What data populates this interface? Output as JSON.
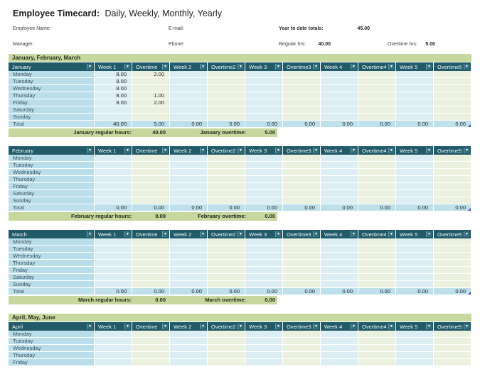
{
  "title": {
    "main": "Employee Timecard:",
    "subtitle": "Daily, Weekly, Monthly, Yearly"
  },
  "fields": {
    "employee_name_label": "Employee Name:",
    "email_label": "E-mail:",
    "ytd_label": "Year to date totals:",
    "ytd_value": "45.00",
    "manager_label": "Manager:",
    "phone_label": "Phone:",
    "regular_label": "Regular hrs:",
    "regular_value": "40.00",
    "overtime_label": "Overtime hrs:",
    "overtime_value": "5.00"
  },
  "columns": [
    "Week 1",
    "Overtime",
    "Week 2",
    "Overtime2",
    "Week 3",
    "Overtime3",
    "Week 4",
    "Overtime4",
    "Week 5",
    "Overtime5"
  ],
  "dropdown_icon": "▼",
  "months": [
    {
      "band": "January, February, March",
      "name": "January",
      "rows": [
        {
          "label": "Monday",
          "values": [
            "8.00",
            "2.00",
            "",
            "",
            "",
            "",
            "",
            "",
            "",
            ""
          ]
        },
        {
          "label": "Tuesday",
          "values": [
            "8.00",
            "",
            "",
            "",
            "",
            "",
            "",
            "",
            "",
            ""
          ]
        },
        {
          "label": "Wednesday",
          "values": [
            "8.00",
            "",
            "",
            "",
            "",
            "",
            "",
            "",
            "",
            ""
          ]
        },
        {
          "label": "Thursday",
          "values": [
            "8.00",
            "1.00",
            "",
            "",
            "",
            "",
            "",
            "",
            "",
            ""
          ]
        },
        {
          "label": "Friday",
          "values": [
            "8.00",
            "2.00",
            "",
            "",
            "",
            "",
            "",
            "",
            "",
            ""
          ]
        },
        {
          "label": "Saturday",
          "values": [
            "",
            "",
            "",
            "",
            "",
            "",
            "",
            "",
            "",
            ""
          ]
        },
        {
          "label": "Sunday",
          "values": [
            "",
            "",
            "",
            "",
            "",
            "",
            "",
            "",
            "",
            ""
          ]
        }
      ],
      "total": {
        "label": "Total",
        "values": [
          "40.00",
          "5.00",
          "0.00",
          "0.00",
          "0.00",
          "0.00",
          "0.00",
          "0.00",
          "0.00",
          "0.00"
        ]
      },
      "footer": {
        "regular_label": "January regular hours:",
        "regular_value": "40.00",
        "overtime_label": "January overtime:",
        "overtime_value": "5.00"
      }
    },
    {
      "name": "February",
      "rows": [
        {
          "label": "Monday",
          "values": [
            "",
            "",
            "",
            "",
            "",
            "",
            "",
            "",
            "",
            ""
          ]
        },
        {
          "label": "Tuesday",
          "values": [
            "",
            "",
            "",
            "",
            "",
            "",
            "",
            "",
            "",
            ""
          ]
        },
        {
          "label": "Wednesday",
          "values": [
            "",
            "",
            "",
            "",
            "",
            "",
            "",
            "",
            "",
            ""
          ]
        },
        {
          "label": "Thursday",
          "values": [
            "",
            "",
            "",
            "",
            "",
            "",
            "",
            "",
            "",
            ""
          ]
        },
        {
          "label": "Friday",
          "values": [
            "",
            "",
            "",
            "",
            "",
            "",
            "",
            "",
            "",
            ""
          ]
        },
        {
          "label": "Saturday",
          "values": [
            "",
            "",
            "",
            "",
            "",
            "",
            "",
            "",
            "",
            ""
          ]
        },
        {
          "label": "Sunday",
          "values": [
            "",
            "",
            "",
            "",
            "",
            "",
            "",
            "",
            "",
            ""
          ]
        }
      ],
      "total": {
        "label": "Total",
        "values": [
          "0.00",
          "0.00",
          "0.00",
          "0.00",
          "0.00",
          "0.00",
          "0.00",
          "0.00",
          "0.00",
          "0.00"
        ]
      },
      "footer": {
        "regular_label": "February regular hours:",
        "regular_value": "0.00",
        "overtime_label": "February overtime:",
        "overtime_value": "0.00"
      }
    },
    {
      "name": "March",
      "rows": [
        {
          "label": "Monday",
          "values": [
            "",
            "",
            "",
            "",
            "",
            "",
            "",
            "",
            "",
            ""
          ]
        },
        {
          "label": "Tuesday",
          "values": [
            "",
            "",
            "",
            "",
            "",
            "",
            "",
            "",
            "",
            ""
          ]
        },
        {
          "label": "Wednesday",
          "values": [
            "",
            "",
            "",
            "",
            "",
            "",
            "",
            "",
            "",
            ""
          ]
        },
        {
          "label": "Thursday",
          "values": [
            "",
            "",
            "",
            "",
            "",
            "",
            "",
            "",
            "",
            ""
          ]
        },
        {
          "label": "Friday",
          "values": [
            "",
            "",
            "",
            "",
            "",
            "",
            "",
            "",
            "",
            ""
          ]
        },
        {
          "label": "Saturday",
          "values": [
            "",
            "",
            "",
            "",
            "",
            "",
            "",
            "",
            "",
            ""
          ]
        },
        {
          "label": "Sunday",
          "values": [
            "",
            "",
            "",
            "",
            "",
            "",
            "",
            "",
            "",
            ""
          ]
        }
      ],
      "total": {
        "label": "Total",
        "values": [
          "0.00",
          "0.00",
          "0.00",
          "0.00",
          "0.00",
          "0.00",
          "0.00",
          "0.00",
          "0.00",
          "0.00"
        ]
      },
      "footer": {
        "regular_label": "March regular hours:",
        "regular_value": "0.00",
        "overtime_label": "March overtime:",
        "overtime_value": "0.00"
      }
    },
    {
      "band": "April, May, June",
      "name": "April",
      "rows": [
        {
          "label": "Monday",
          "values": [
            "",
            "",
            "",
            "",
            "",
            "",
            "",
            "",
            "",
            ""
          ]
        },
        {
          "label": "Tuesday",
          "values": [
            "",
            "",
            "",
            "",
            "",
            "",
            "",
            "",
            "",
            ""
          ]
        },
        {
          "label": "Wednesday",
          "values": [
            "",
            "",
            "",
            "",
            "",
            "",
            "",
            "",
            "",
            ""
          ]
        },
        {
          "label": "Thursday",
          "values": [
            "",
            "",
            "",
            "",
            "",
            "",
            "",
            "",
            "",
            ""
          ]
        },
        {
          "label": "Friday",
          "values": [
            "",
            "",
            "",
            "",
            "",
            "",
            "",
            "",
            "",
            ""
          ]
        }
      ]
    }
  ],
  "colors": {
    "header_teal": "#215b69",
    "dropdown_teal": "#35707f",
    "day_column_blue": "#b9dde9",
    "week_cell_blue": "#dceef3",
    "overtime_cell_green": "#ecf1df",
    "total_row_blue": "#bde0ea",
    "band_green": "#c6d89e",
    "smart_tag_blue": "#4a4ae0"
  }
}
